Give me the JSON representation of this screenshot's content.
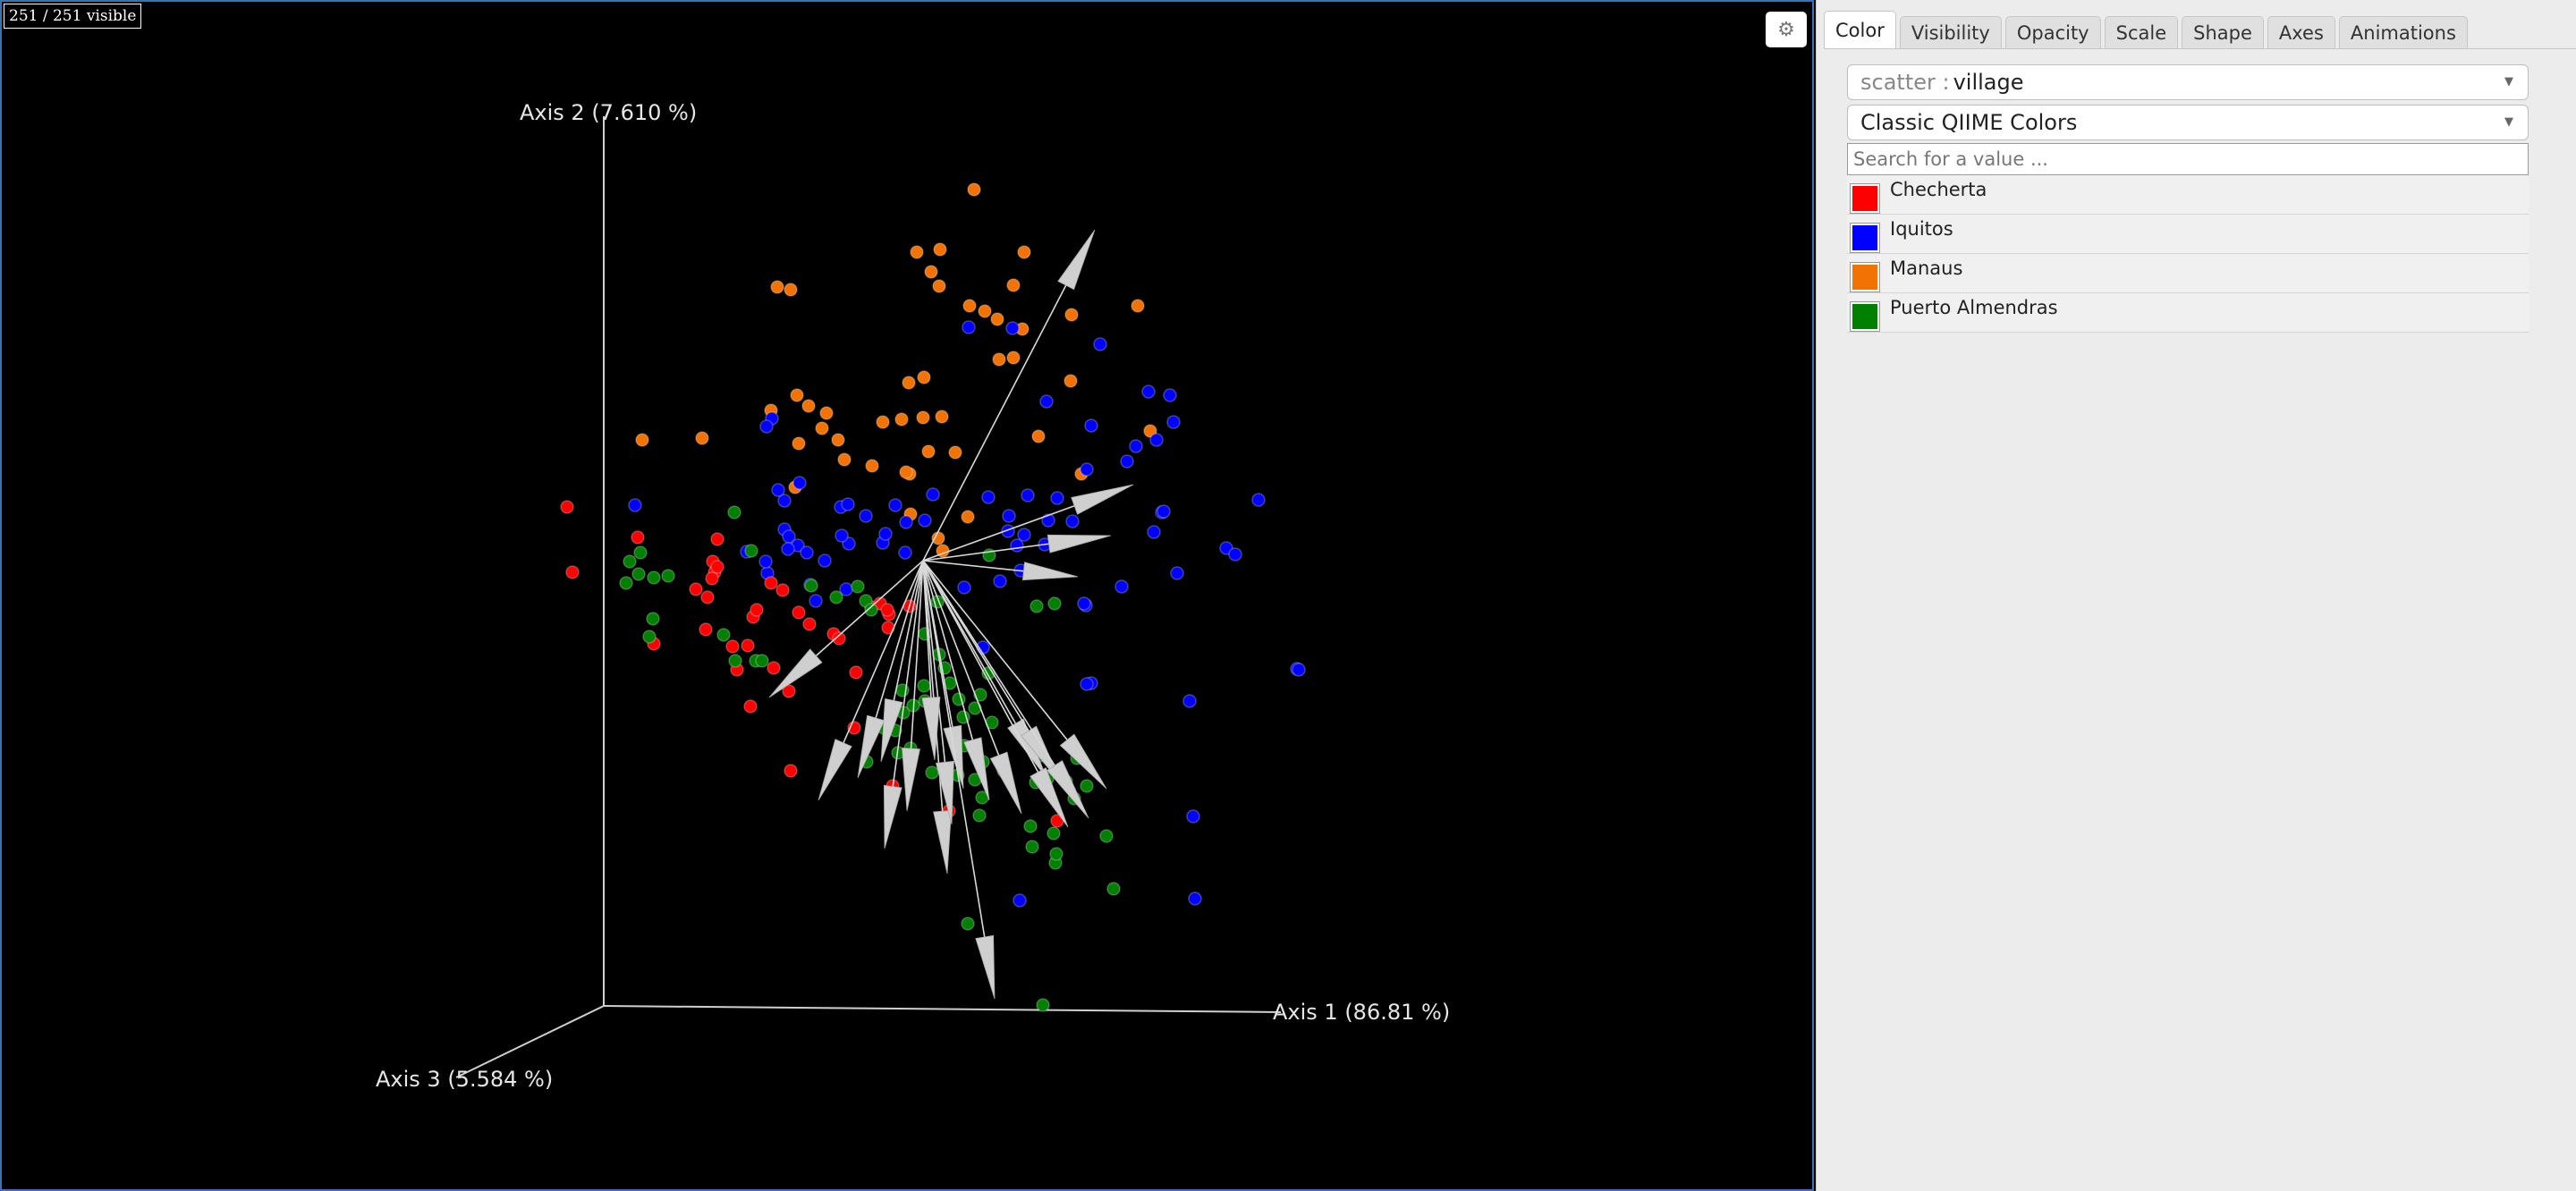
{
  "plot": {
    "visible_count": "251 / 251 visible",
    "settings_icon": "gear-icon",
    "axis_1_label": "Axis 1 (86.81 %)",
    "axis_2_label": "Axis 2 (7.610 %)",
    "axis_3_label": "Axis 3 (5.584 %)"
  },
  "tabs": [
    {
      "label": "Color",
      "active": true
    },
    {
      "label": "Visibility",
      "active": false
    },
    {
      "label": "Opacity",
      "active": false
    },
    {
      "label": "Scale",
      "active": false
    },
    {
      "label": "Shape",
      "active": false
    },
    {
      "label": "Axes",
      "active": false
    },
    {
      "label": "Animations",
      "active": false
    }
  ],
  "color_panel": {
    "category_prefix": "scatter :",
    "category_value": "village",
    "colormap": "Classic QIIME Colors",
    "search_placeholder": "Search for a value ...",
    "entries": [
      {
        "label": "Checherta",
        "color": "#ff0000"
      },
      {
        "label": "Iquitos",
        "color": "#0000ff"
      },
      {
        "label": "Manaus",
        "color": "#f27304"
      },
      {
        "label": "Puerto Almendras",
        "color": "#008000"
      }
    ]
  },
  "colors": {
    "background": "#000000",
    "axes": "#cccccc",
    "arrows": "#d8d8d8"
  }
}
